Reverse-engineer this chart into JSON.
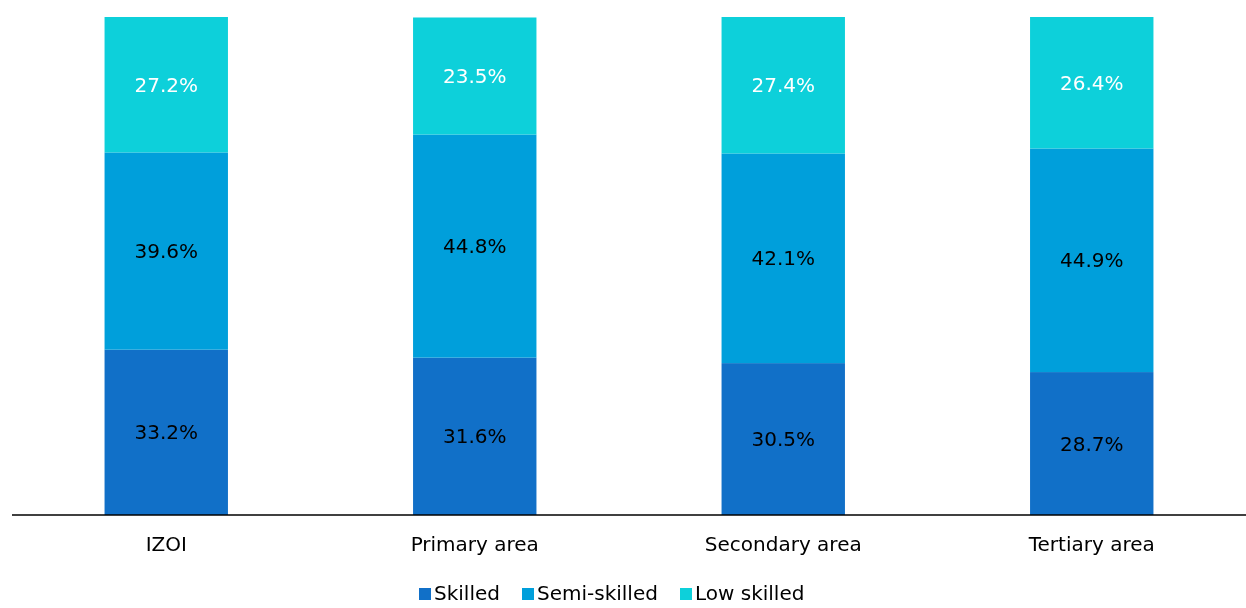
{
  "chart_data": {
    "type": "bar",
    "stacked": true,
    "legend": "bottom",
    "categories": [
      "IZOI",
      "Primary area",
      "Secondary area",
      "Tertiary area"
    ],
    "series": [
      {
        "name": "Skilled",
        "color": "#1170c8",
        "values": [
          33.2,
          31.6,
          30.5,
          28.7
        ],
        "value_labels": [
          "33.2%",
          "31.6%",
          "30.5%",
          "28.7%"
        ]
      },
      {
        "name": "Semi-skilled",
        "color": "#009fdb",
        "values": [
          39.6,
          44.8,
          42.1,
          44.9
        ],
        "value_labels": [
          "39.6%",
          "44.8%",
          "42.1%",
          "44.9%"
        ]
      },
      {
        "name": "Low skilled",
        "color": "#0dd0da",
        "values": [
          27.2,
          23.5,
          27.4,
          26.4
        ],
        "value_labels": [
          "27.2%",
          "23.5%",
          "27.4%",
          "26.4%"
        ]
      }
    ]
  }
}
